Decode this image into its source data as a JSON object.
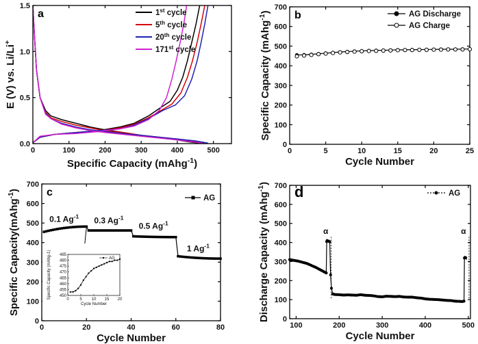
{
  "chart_data": [
    {
      "panel": "a",
      "type": "line",
      "xlabel": "Specific Capacity (mAhg",
      "xlabel_sup": "-1",
      "xlabel_end": ")",
      "ylabel": "E (V) vs. Li/Li",
      "ylabel_sup": "+",
      "xlim": [
        0,
        550
      ],
      "ylim": [
        0,
        1.5
      ],
      "xticks": [
        0,
        100,
        200,
        300,
        400,
        500
      ],
      "yticks": [
        0.0,
        0.5,
        1.0,
        1.5
      ],
      "ytick_labels": [
        "0.0",
        "0.5",
        "1.0",
        "1.5"
      ],
      "series": [
        {
          "name": "1st cycle",
          "num": "1",
          "sup": "st",
          "rest": " cycle",
          "color": "#000000",
          "discharge": [
            [
              0,
              1.5
            ],
            [
              4,
              1.2
            ],
            [
              10,
              0.8
            ],
            [
              20,
              0.5
            ],
            [
              35,
              0.36
            ],
            [
              50,
              0.3
            ],
            [
              80,
              0.26
            ],
            [
              120,
              0.22
            ],
            [
              160,
              0.18
            ],
            [
              200,
              0.15
            ],
            [
              250,
              0.12
            ],
            [
              300,
              0.09
            ],
            [
              350,
              0.07
            ],
            [
              400,
              0.04
            ],
            [
              430,
              0.02
            ],
            [
              460,
              0.005
            ]
          ],
          "charge": [
            [
              0,
              0.01
            ],
            [
              20,
              0.07
            ],
            [
              60,
              0.1
            ],
            [
              120,
              0.12
            ],
            [
              180,
              0.14
            ],
            [
              240,
              0.18
            ],
            [
              280,
              0.22
            ],
            [
              320,
              0.3
            ],
            [
              350,
              0.38
            ],
            [
              380,
              0.46
            ],
            [
              400,
              0.58
            ],
            [
              415,
              0.72
            ],
            [
              428,
              0.9
            ],
            [
              440,
              1.1
            ],
            [
              452,
              1.3
            ],
            [
              462,
              1.5
            ]
          ]
        },
        {
          "name": "5th cycle",
          "num": "5",
          "sup": "th",
          "rest": " cycle",
          "color": "#d40000",
          "discharge": [
            [
              0,
              1.5
            ],
            [
              4,
              1.2
            ],
            [
              10,
              0.8
            ],
            [
              20,
              0.5
            ],
            [
              35,
              0.34
            ],
            [
              50,
              0.28
            ],
            [
              80,
              0.24
            ],
            [
              120,
              0.2
            ],
            [
              160,
              0.17
            ],
            [
              200,
              0.14
            ],
            [
              250,
              0.12
            ],
            [
              300,
              0.09
            ],
            [
              350,
              0.07
            ],
            [
              400,
              0.05
            ],
            [
              440,
              0.03
            ],
            [
              475,
              0.005
            ]
          ],
          "charge": [
            [
              0,
              0.01
            ],
            [
              20,
              0.07
            ],
            [
              60,
              0.1
            ],
            [
              120,
              0.12
            ],
            [
              180,
              0.14
            ],
            [
              240,
              0.17
            ],
            [
              280,
              0.21
            ],
            [
              320,
              0.28
            ],
            [
              355,
              0.36
            ],
            [
              385,
              0.43
            ],
            [
              410,
              0.55
            ],
            [
              428,
              0.72
            ],
            [
              442,
              0.9
            ],
            [
              455,
              1.1
            ],
            [
              466,
              1.3
            ],
            [
              476,
              1.5
            ]
          ]
        },
        {
          "name": "20th cycle",
          "num": "20",
          "sup": "th",
          "rest": " cycle",
          "color": "#1f1fb4",
          "discharge": [
            [
              0,
              1.5
            ],
            [
              4,
              1.2
            ],
            [
              10,
              0.8
            ],
            [
              20,
              0.5
            ],
            [
              35,
              0.33
            ],
            [
              50,
              0.27
            ],
            [
              80,
              0.22
            ],
            [
              120,
              0.18
            ],
            [
              160,
              0.15
            ],
            [
              200,
              0.13
            ],
            [
              250,
              0.11
            ],
            [
              300,
              0.09
            ],
            [
              350,
              0.07
            ],
            [
              400,
              0.05
            ],
            [
              450,
              0.03
            ],
            [
              485,
              0.005
            ]
          ],
          "charge": [
            [
              0,
              0.01
            ],
            [
              20,
              0.07
            ],
            [
              60,
              0.1
            ],
            [
              120,
              0.12
            ],
            [
              180,
              0.14
            ],
            [
              240,
              0.16
            ],
            [
              280,
              0.2
            ],
            [
              320,
              0.27
            ],
            [
              360,
              0.36
            ],
            [
              395,
              0.42
            ],
            [
              420,
              0.52
            ],
            [
              440,
              0.7
            ],
            [
              455,
              0.9
            ],
            [
              466,
              1.1
            ],
            [
              476,
              1.3
            ],
            [
              485,
              1.5
            ]
          ]
        },
        {
          "name": "171st cycle",
          "num": "171",
          "sup": "st",
          "rest": " cycle",
          "color": "#d020d0",
          "discharge": [
            [
              0,
              1.5
            ],
            [
              4,
              1.2
            ],
            [
              10,
              0.8
            ],
            [
              20,
              0.5
            ],
            [
              35,
              0.32
            ],
            [
              50,
              0.27
            ],
            [
              80,
              0.21
            ],
            [
              120,
              0.17
            ],
            [
              160,
              0.14
            ],
            [
              200,
              0.12
            ],
            [
              250,
              0.1
            ],
            [
              300,
              0.08
            ],
            [
              350,
              0.06
            ],
            [
              400,
              0.04
            ],
            [
              440,
              0.02
            ],
            [
              470,
              0.005
            ]
          ],
          "charge": [
            [
              0,
              0.01
            ],
            [
              20,
              0.08
            ],
            [
              60,
              0.1
            ],
            [
              120,
              0.11
            ],
            [
              180,
              0.13
            ],
            [
              240,
              0.16
            ],
            [
              280,
              0.19
            ],
            [
              320,
              0.26
            ],
            [
              350,
              0.36
            ],
            [
              370,
              0.5
            ],
            [
              385,
              0.7
            ],
            [
              397,
              0.9
            ],
            [
              408,
              1.1
            ],
            [
              418,
              1.3
            ],
            [
              426,
              1.5
            ]
          ]
        }
      ]
    },
    {
      "panel": "b",
      "type": "line",
      "xlabel": "Cycle Number",
      "ylabel": "Specific Capacity (mAhg",
      "ylabel_sup": "-1",
      "ylabel_end": ")",
      "xlim": [
        0,
        25
      ],
      "ylim": [
        0,
        700
      ],
      "xticks": [
        0,
        5,
        10,
        15,
        20,
        25
      ],
      "yticks": [
        0,
        100,
        200,
        300,
        400,
        500,
        600,
        700
      ],
      "series": [
        {
          "name": "AG Discharge",
          "marker": "filled",
          "x": [
            1,
            2,
            3,
            4,
            5,
            6,
            7,
            8,
            9,
            10,
            11,
            12,
            13,
            14,
            15,
            16,
            17,
            18,
            19,
            20,
            21,
            22,
            23,
            24,
            25
          ],
          "values": [
            455,
            456,
            458,
            461,
            464,
            467,
            470,
            472,
            474,
            476,
            477,
            478,
            479,
            480,
            481,
            481,
            482,
            482,
            483,
            483,
            484,
            484,
            484,
            485,
            485
          ]
        },
        {
          "name": "AG Charge",
          "marker": "open",
          "x": [
            1,
            2,
            3,
            4,
            5,
            6,
            7,
            8,
            9,
            10,
            11,
            12,
            13,
            14,
            15,
            16,
            17,
            18,
            19,
            20,
            21,
            22,
            23,
            24,
            25
          ],
          "values": [
            448,
            452,
            455,
            459,
            462,
            465,
            468,
            470,
            472,
            474,
            475,
            476,
            477,
            478,
            479,
            480,
            480,
            481,
            481,
            482,
            482,
            483,
            483,
            483,
            484
          ]
        }
      ]
    },
    {
      "panel": "c",
      "type": "line",
      "xlabel": "Cycle Number",
      "ylabel": "Specific Capacity(mAhg",
      "ylabel_sup": "-1",
      "ylabel_end": ")",
      "xlim": [
        0,
        80
      ],
      "ylim": [
        0,
        700
      ],
      "xticks": [
        0,
        20,
        40,
        60,
        80
      ],
      "yticks": [
        0,
        100,
        200,
        300,
        400,
        500,
        600,
        700
      ],
      "legend": "AG",
      "annotations": [
        {
          "text": "0.1 Ag",
          "sup": "-1",
          "x": 10,
          "y": 505
        },
        {
          "text": "0.3 Ag",
          "sup": "-1",
          "x": 30,
          "y": 498
        },
        {
          "text": "0.5 Ag",
          "sup": "-1",
          "x": 50,
          "y": 470
        },
        {
          "text": "1 Ag",
          "sup": "-1",
          "x": 70,
          "y": 355
        }
      ],
      "segments": [
        {
          "x0": 1,
          "x1": 20,
          "y0": 455,
          "y1": 482
        },
        {
          "x0": 21,
          "x1": 40,
          "y0": 462,
          "y1": 462
        },
        {
          "x0": 41,
          "x1": 60,
          "y0": 432,
          "y1": 428
        },
        {
          "x0": 61,
          "x1": 80,
          "y0": 330,
          "y1": 318
        }
      ],
      "inset": {
        "xlabel": "Cycle Number",
        "ylabel": "Specific Capacity (mAhg-1)",
        "legend": "AG",
        "xlim": [
          0,
          20
        ],
        "ylim": [
          450,
          485
        ],
        "xticks": [
          0,
          5,
          10,
          15,
          20
        ],
        "yticks": [
          450,
          455,
          460,
          465,
          470,
          475,
          480,
          485
        ],
        "x": [
          1,
          2,
          3,
          4,
          5,
          6,
          7,
          8,
          9,
          10,
          11,
          12,
          13,
          14,
          15,
          16,
          17,
          18,
          19,
          20
        ],
        "values": [
          453,
          453,
          454,
          456,
          459,
          463,
          466,
          469,
          471,
          473,
          474,
          475,
          476,
          477,
          478,
          479,
          479,
          480,
          480,
          481
        ]
      }
    },
    {
      "panel": "d",
      "type": "line",
      "xlabel": "Cycle Number",
      "ylabel": "Discharge Capacity (mAhg",
      "ylabel_sup": "-1",
      "ylabel_end": ")",
      "xlim": [
        85,
        505
      ],
      "ylim": [
        0,
        700
      ],
      "xticks": [
        100,
        200,
        300,
        400,
        500
      ],
      "yticks": [
        0,
        100,
        200,
        300,
        400,
        500,
        600,
        700
      ],
      "legend": "AG",
      "annotations": [
        {
          "text": "α",
          "x": 172
        },
        {
          "text": "α",
          "x": 492
        }
      ],
      "x": [
        85,
        95,
        105,
        115,
        125,
        135,
        145,
        155,
        165,
        170,
        171,
        172,
        174,
        176,
        178,
        180,
        182,
        185,
        190,
        200,
        210,
        220,
        230,
        240,
        250,
        260,
        270,
        280,
        290,
        300,
        310,
        320,
        330,
        340,
        350,
        360,
        370,
        380,
        390,
        400,
        410,
        420,
        430,
        440,
        450,
        460,
        470,
        480,
        485,
        490,
        491,
        492,
        494,
        496
      ],
      "values": [
        310,
        306,
        302,
        296,
        290,
        280,
        270,
        258,
        246,
        240,
        405,
        410,
        408,
        406,
        404,
        230,
        160,
        130,
        127,
        126,
        124,
        125,
        124,
        123,
        126,
        123,
        122,
        120,
        116,
        115,
        118,
        117,
        116,
        117,
        114,
        113,
        113,
        110,
        108,
        104,
        102,
        101,
        100,
        98,
        96,
        95,
        92,
        91,
        90,
        92,
        318,
        322,
        320,
        310
      ]
    }
  ]
}
